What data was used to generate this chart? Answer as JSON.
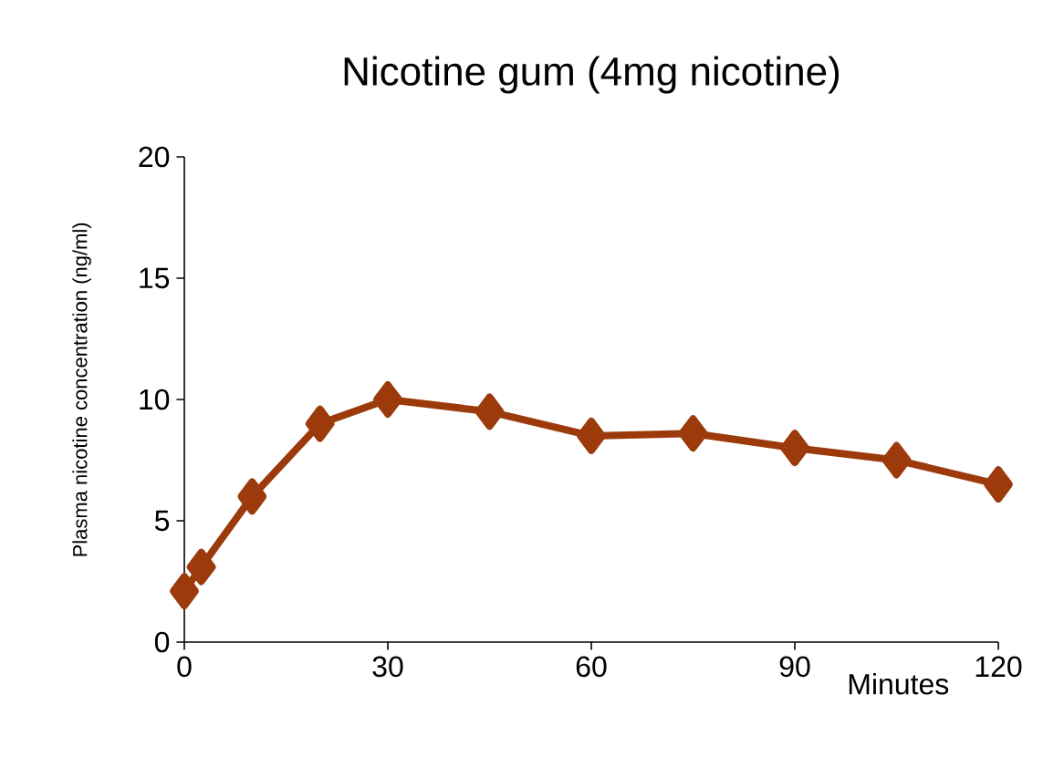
{
  "chart_data": {
    "type": "line",
    "title": "Nicotine gum (4mg nicotine)",
    "xlabel": "Minutes",
    "ylabel": "Plasma nicotine concentration (ng/ml)",
    "x": [
      0,
      2.5,
      10,
      20,
      30,
      45,
      60,
      75,
      90,
      105,
      120
    ],
    "series": [
      {
        "color": "#9c3a0c",
        "values": [
          2.1,
          3.1,
          6.0,
          9.0,
          10.0,
          9.5,
          8.5,
          8.6,
          8.0,
          7.5,
          6.5
        ]
      }
    ],
    "xlim": [
      0,
      120
    ],
    "ylim": [
      0,
      20
    ],
    "xticks": [
      0,
      30,
      60,
      90,
      120
    ],
    "yticks": [
      0,
      5,
      10,
      15,
      20
    ],
    "marker": "diamond",
    "line_style": "solid"
  }
}
